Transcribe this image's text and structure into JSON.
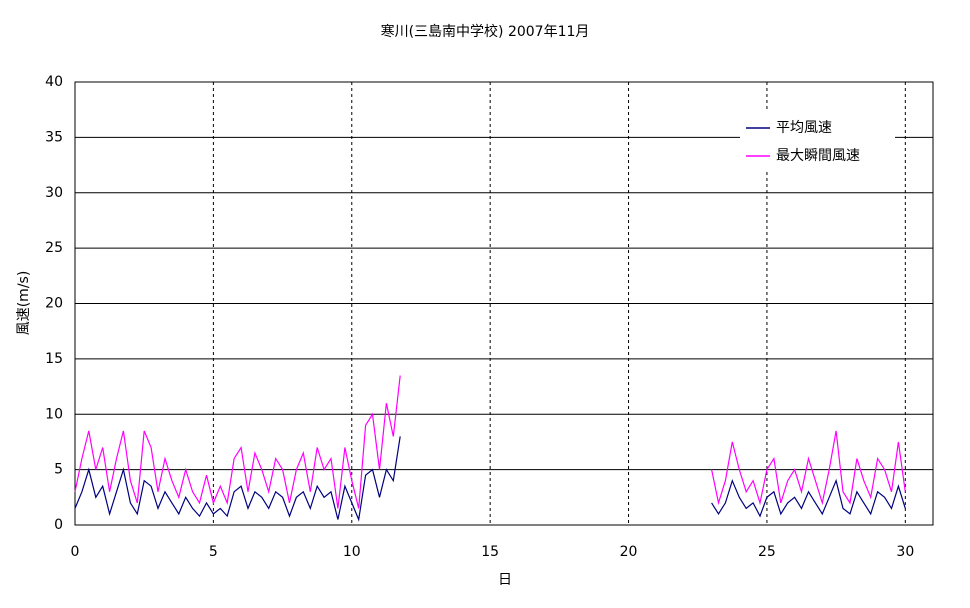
{
  "chart_data": {
    "type": "line",
    "title": "寒川(三島南中学校)  2007年11月",
    "x_label": "日",
    "y_label": "風速(m/s)",
    "xlim": [
      0,
      31
    ],
    "xticks": [
      0,
      5,
      10,
      15,
      20,
      25,
      30
    ],
    "ylim": [
      0,
      40
    ],
    "yticks": [
      0,
      5,
      10,
      15,
      20,
      25,
      30,
      35,
      40
    ],
    "grid": true,
    "legend": "upper-right",
    "x": [
      0,
      0.25,
      0.5,
      0.75,
      1,
      1.25,
      1.5,
      1.75,
      2,
      2.25,
      2.5,
      2.75,
      3,
      3.25,
      3.5,
      3.75,
      4,
      4.25,
      4.5,
      4.75,
      5,
      5.25,
      5.5,
      5.75,
      6,
      6.25,
      6.5,
      6.75,
      7,
      7.25,
      7.5,
      7.75,
      8,
      8.25,
      8.5,
      8.75,
      9,
      9.25,
      9.5,
      9.75,
      10,
      10.25,
      10.5,
      10.75,
      11,
      11.25,
      11.5,
      11.75,
      17,
      23,
      23.25,
      23.5,
      23.75,
      24,
      24.25,
      24.5,
      24.75,
      25,
      25.25,
      25.5,
      25.75,
      26,
      26.25,
      26.5,
      26.75,
      27,
      27.25,
      27.5,
      27.75,
      28,
      28.25,
      28.5,
      28.75,
      29,
      29.25,
      29.5,
      29.75,
      30
    ],
    "series": [
      {
        "name": "平均風速",
        "color": "#000080",
        "values": [
          1.5,
          3,
          5,
          2.5,
          3.5,
          1,
          3,
          5,
          2,
          1,
          4,
          3.5,
          1.5,
          3,
          2,
          1,
          2.5,
          1.5,
          0.8,
          2,
          1,
          1.5,
          0.8,
          3,
          3.5,
          1.5,
          3,
          2.5,
          1.5,
          3,
          2.5,
          0.8,
          2.5,
          3,
          1.5,
          3.5,
          2.5,
          3,
          0.5,
          3.5,
          2,
          0.5,
          4.5,
          5,
          2.5,
          5,
          4,
          8,
          null,
          2,
          1,
          2,
          4,
          2.5,
          1.5,
          2,
          0.8,
          2.5,
          3,
          1,
          2,
          2.5,
          1.5,
          3,
          2,
          1,
          2.5,
          4,
          1.5,
          1,
          3,
          2,
          1,
          3,
          2.5,
          1.5,
          3.5,
          1.5
        ]
      },
      {
        "name": "最大瞬間風速",
        "color": "#ff00ff",
        "values": [
          3,
          6,
          8.5,
          5,
          7,
          3,
          6,
          8.5,
          4,
          2,
          8.5,
          7,
          3,
          6,
          4,
          2.5,
          5,
          3,
          2,
          4.5,
          2,
          3.5,
          2,
          6,
          7,
          3,
          6.5,
          5,
          3,
          6,
          5,
          2,
          5,
          6.5,
          3,
          7,
          5,
          6,
          1.5,
          7,
          4,
          1.5,
          9,
          10,
          5,
          11,
          8,
          13.5,
          null,
          5,
          2,
          4,
          7.5,
          5,
          3,
          4,
          2,
          5,
          6,
          2,
          4,
          5,
          3,
          6,
          4,
          2,
          5,
          8.5,
          3,
          2,
          6,
          4,
          2.5,
          6,
          5,
          3,
          7.5,
          3
        ]
      }
    ]
  }
}
